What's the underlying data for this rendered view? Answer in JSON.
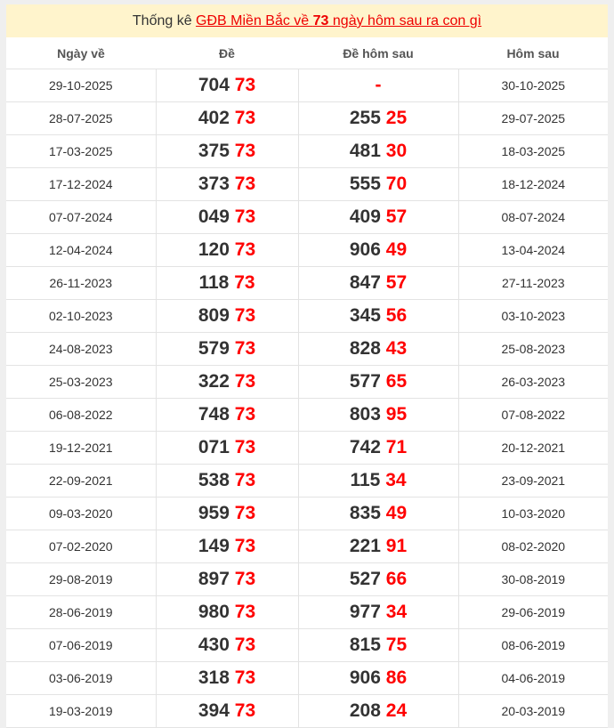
{
  "title": {
    "prefix": "Thống kê ",
    "link_pre": "GĐB Miền Bắc về ",
    "number": "73",
    "link_post": " ngày hôm sau ra con gì"
  },
  "headers": [
    "Ngày về",
    "Đề",
    "Đề hôm sau",
    "Hôm sau"
  ],
  "colors": {
    "accent": "#ff0000",
    "title_bg": "#fff4cc"
  },
  "rows": [
    {
      "date": "29-10-2025",
      "de_pre": "704",
      "de_tail": "73",
      "next_pre": "",
      "next_tail": "-",
      "next_date": "30-10-2025"
    },
    {
      "date": "28-07-2025",
      "de_pre": "402",
      "de_tail": "73",
      "next_pre": "255",
      "next_tail": "25",
      "next_date": "29-07-2025"
    },
    {
      "date": "17-03-2025",
      "de_pre": "375",
      "de_tail": "73",
      "next_pre": "481",
      "next_tail": "30",
      "next_date": "18-03-2025"
    },
    {
      "date": "17-12-2024",
      "de_pre": "373",
      "de_tail": "73",
      "next_pre": "555",
      "next_tail": "70",
      "next_date": "18-12-2024"
    },
    {
      "date": "07-07-2024",
      "de_pre": "049",
      "de_tail": "73",
      "next_pre": "409",
      "next_tail": "57",
      "next_date": "08-07-2024"
    },
    {
      "date": "12-04-2024",
      "de_pre": "120",
      "de_tail": "73",
      "next_pre": "906",
      "next_tail": "49",
      "next_date": "13-04-2024"
    },
    {
      "date": "26-11-2023",
      "de_pre": "118",
      "de_tail": "73",
      "next_pre": "847",
      "next_tail": "57",
      "next_date": "27-11-2023"
    },
    {
      "date": "02-10-2023",
      "de_pre": "809",
      "de_tail": "73",
      "next_pre": "345",
      "next_tail": "56",
      "next_date": "03-10-2023"
    },
    {
      "date": "24-08-2023",
      "de_pre": "579",
      "de_tail": "73",
      "next_pre": "828",
      "next_tail": "43",
      "next_date": "25-08-2023"
    },
    {
      "date": "25-03-2023",
      "de_pre": "322",
      "de_tail": "73",
      "next_pre": "577",
      "next_tail": "65",
      "next_date": "26-03-2023"
    },
    {
      "date": "06-08-2022",
      "de_pre": "748",
      "de_tail": "73",
      "next_pre": "803",
      "next_tail": "95",
      "next_date": "07-08-2022"
    },
    {
      "date": "19-12-2021",
      "de_pre": "071",
      "de_tail": "73",
      "next_pre": "742",
      "next_tail": "71",
      "next_date": "20-12-2021"
    },
    {
      "date": "22-09-2021",
      "de_pre": "538",
      "de_tail": "73",
      "next_pre": "115",
      "next_tail": "34",
      "next_date": "23-09-2021"
    },
    {
      "date": "09-03-2020",
      "de_pre": "959",
      "de_tail": "73",
      "next_pre": "835",
      "next_tail": "49",
      "next_date": "10-03-2020"
    },
    {
      "date": "07-02-2020",
      "de_pre": "149",
      "de_tail": "73",
      "next_pre": "221",
      "next_tail": "91",
      "next_date": "08-02-2020"
    },
    {
      "date": "29-08-2019",
      "de_pre": "897",
      "de_tail": "73",
      "next_pre": "527",
      "next_tail": "66",
      "next_date": "30-08-2019"
    },
    {
      "date": "28-06-2019",
      "de_pre": "980",
      "de_tail": "73",
      "next_pre": "977",
      "next_tail": "34",
      "next_date": "29-06-2019"
    },
    {
      "date": "07-06-2019",
      "de_pre": "430",
      "de_tail": "73",
      "next_pre": "815",
      "next_tail": "75",
      "next_date": "08-06-2019"
    },
    {
      "date": "03-06-2019",
      "de_pre": "318",
      "de_tail": "73",
      "next_pre": "906",
      "next_tail": "86",
      "next_date": "04-06-2019"
    },
    {
      "date": "19-03-2019",
      "de_pre": "394",
      "de_tail": "73",
      "next_pre": "208",
      "next_tail": "24",
      "next_date": "20-03-2019"
    }
  ]
}
